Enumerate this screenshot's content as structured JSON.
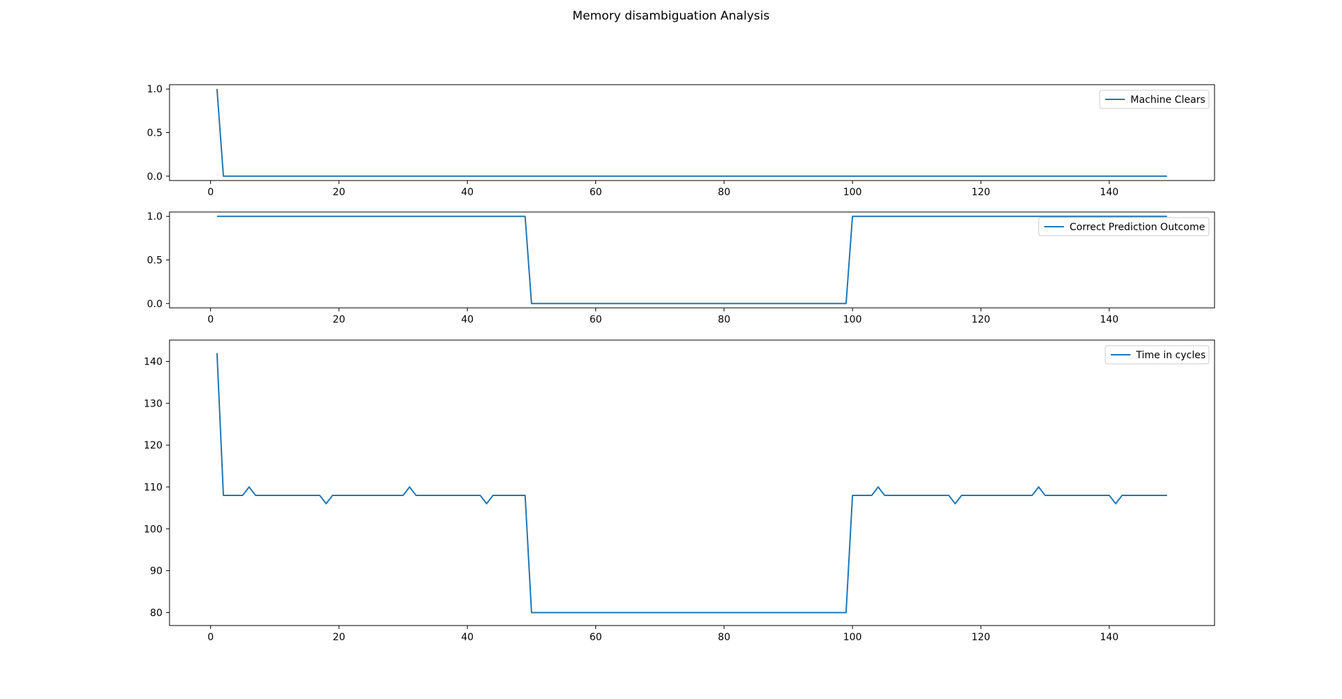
{
  "figure": {
    "title": "Memory disambiguation Analysis"
  },
  "chart_data": [
    {
      "type": "line",
      "title": "",
      "xlabel": "",
      "ylabel": "",
      "xlim": [
        -6.4,
        156.4
      ],
      "ylim": [
        -0.05,
        1.05
      ],
      "xticks": [
        0,
        20,
        40,
        60,
        80,
        100,
        120,
        140
      ],
      "yticks": [
        0.0,
        0.5,
        1.0
      ],
      "ytick_labels": [
        "0.0",
        "0.5",
        "1.0"
      ],
      "grid": false,
      "legend_position": "top-right",
      "series": [
        {
          "name": "Machine Clears",
          "color": "#1f77b4",
          "x": [
            1,
            2,
            149
          ],
          "y": [
            1,
            0,
            0
          ]
        }
      ]
    },
    {
      "type": "line",
      "title": "",
      "xlabel": "",
      "ylabel": "",
      "xlim": [
        -6.4,
        156.4
      ],
      "ylim": [
        -0.05,
        1.05
      ],
      "xticks": [
        0,
        20,
        40,
        60,
        80,
        100,
        120,
        140
      ],
      "yticks": [
        0.0,
        0.5,
        1.0
      ],
      "ytick_labels": [
        "0.0",
        "0.5",
        "1.0"
      ],
      "grid": false,
      "legend_position": "top-right",
      "series": [
        {
          "name": "Correct Prediction Outcome",
          "color": "#1f77b4",
          "x": [
            1,
            49,
            50,
            99,
            100,
            149
          ],
          "y": [
            1,
            1,
            0,
            0,
            1,
            1
          ]
        }
      ]
    },
    {
      "type": "line",
      "title": "",
      "xlabel": "",
      "ylabel": "",
      "xlim": [
        -6.4,
        156.4
      ],
      "ylim": [
        76.9,
        145.1
      ],
      "xticks": [
        0,
        20,
        40,
        60,
        80,
        100,
        120,
        140
      ],
      "yticks": [
        80,
        90,
        100,
        110,
        120,
        130,
        140
      ],
      "ytick_labels": [
        "80",
        "90",
        "100",
        "110",
        "120",
        "130",
        "140"
      ],
      "grid": false,
      "legend_position": "top-right",
      "series": [
        {
          "name": "Time in cycles",
          "color": "#1f77b4",
          "x": [
            1,
            2,
            5,
            6,
            7,
            17,
            18,
            19,
            30,
            31,
            32,
            42,
            43,
            44,
            49,
            50,
            99,
            100,
            103,
            104,
            105,
            115,
            116,
            117,
            128,
            129,
            130,
            140,
            141,
            142,
            149
          ],
          "y": [
            142,
            108,
            108,
            110,
            108,
            108,
            106,
            108,
            108,
            110,
            108,
            108,
            106,
            108,
            108,
            80,
            80,
            108,
            108,
            110,
            108,
            108,
            106,
            108,
            108,
            110,
            108,
            108,
            106,
            108,
            108
          ]
        }
      ]
    }
  ]
}
